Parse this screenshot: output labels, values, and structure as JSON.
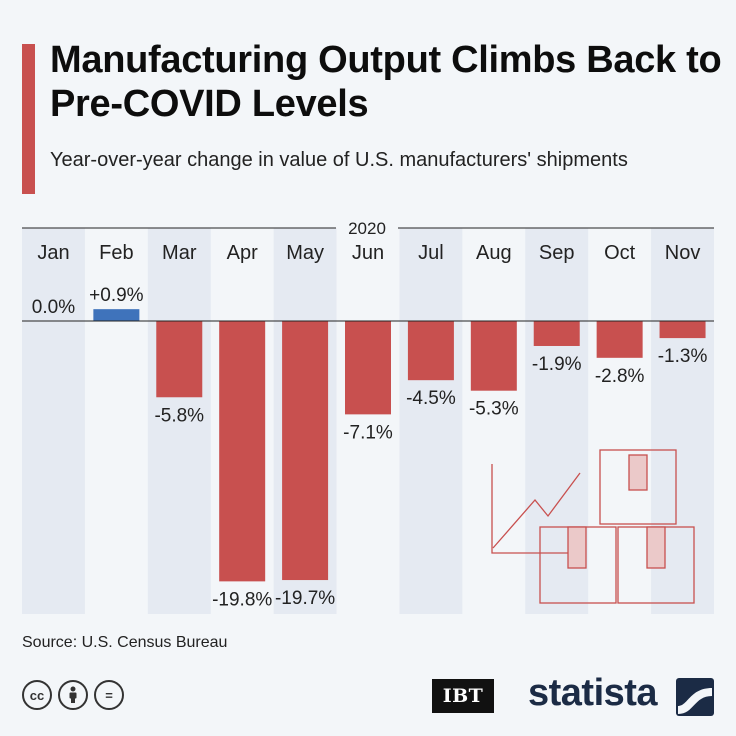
{
  "header": {
    "title": "Manufacturing Output Climbs Back to Pre-COVID Levels",
    "subtitle": "Year-over-year change in value of U.S. manufacturers' shipments"
  },
  "footer": {
    "source": "Source: U.S. Census Bureau",
    "ibt_logo": "IBT",
    "statista_logo": "statista",
    "license_icons": [
      "cc-icon",
      "by-icon",
      "nd-icon"
    ],
    "license_labels": [
      "cc",
      "",
      "="
    ]
  },
  "colors": {
    "accent": "#c8504f",
    "positive": "#3f73bb",
    "negative": "#c8504f",
    "shade": "#e5eaf2"
  },
  "chart_data": {
    "type": "bar",
    "year_label": "2020",
    "categories": [
      "Jan",
      "Feb",
      "Mar",
      "Apr",
      "May",
      "Jun",
      "Jul",
      "Aug",
      "Sep",
      "Oct",
      "Nov"
    ],
    "values": [
      0.0,
      0.9,
      -5.8,
      -19.8,
      -19.7,
      -7.1,
      -4.5,
      -5.3,
      -1.9,
      -2.8,
      -1.3
    ],
    "labels": [
      "0.0%",
      "+0.9%",
      "-5.8%",
      "-19.8%",
      "-19.7%",
      "-7.1%",
      "-4.5%",
      "-5.3%",
      "-1.9%",
      "-2.8%",
      "-1.3%"
    ],
    "ylim": [
      -21,
      2
    ],
    "unit": "%"
  }
}
